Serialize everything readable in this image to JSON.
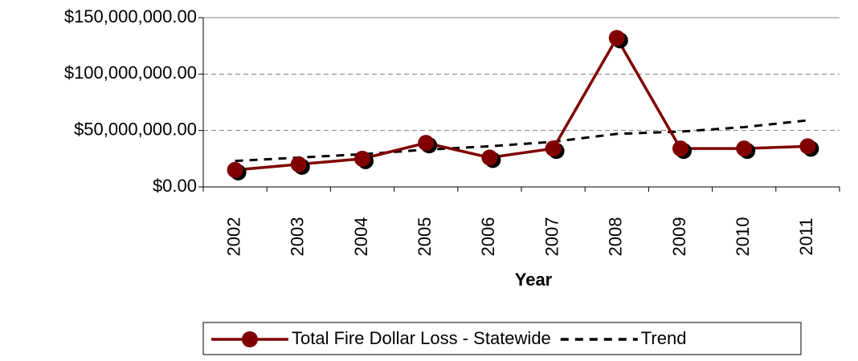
{
  "chart_data": {
    "type": "line",
    "x_label": "Year",
    "categories": [
      "2002",
      "2003",
      "2004",
      "2005",
      "2006",
      "2007",
      "2008",
      "2009",
      "2010",
      "2011"
    ],
    "series": [
      {
        "name": "Total Fire Dollar Loss - Statewide",
        "color": "#800000",
        "marker": "circle",
        "values": [
          15000000,
          20000000,
          25000000,
          39000000,
          26000000,
          34000000,
          132000000,
          34000000,
          34000000,
          36000000
        ]
      },
      {
        "name": "Trend",
        "color": "#000000",
        "dashed": true,
        "values": [
          23000000,
          26000000,
          29000000,
          33000000,
          36000000,
          40000000,
          47000000,
          49000000,
          53000000,
          59000000
        ]
      }
    ],
    "ylim": [
      0,
      150000000
    ],
    "yticks": [
      {
        "value": 0,
        "label": "$0.00"
      },
      {
        "value": 50000000,
        "label": "$50,000,000.00"
      },
      {
        "value": 100000000,
        "label": "$100,000,000.00"
      },
      {
        "value": 150000000,
        "label": "$150,000,000.00"
      }
    ],
    "grid": true,
    "legend": "bottom"
  }
}
